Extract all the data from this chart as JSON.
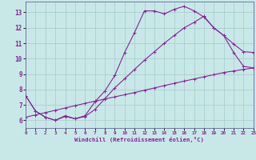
{
  "xlabel": "Windchill (Refroidissement éolien,°C)",
  "xlim": [
    0,
    23
  ],
  "ylim": [
    5.5,
    13.7
  ],
  "xticks": [
    0,
    1,
    2,
    3,
    4,
    5,
    6,
    7,
    8,
    9,
    10,
    11,
    12,
    13,
    14,
    15,
    16,
    17,
    18,
    19,
    20,
    21,
    22,
    23
  ],
  "yticks": [
    6,
    7,
    8,
    9,
    10,
    11,
    12,
    13
  ],
  "bg_color": "#c8e8e8",
  "grid_color": "#aacccc",
  "line_color": "#882299",
  "line1_x": [
    0,
    1,
    2,
    3,
    4,
    5,
    6,
    7,
    8,
    9,
    10,
    11,
    12,
    13,
    14,
    15,
    16,
    17,
    18,
    19,
    20,
    21,
    22,
    23
  ],
  "line1_y": [
    7.6,
    6.6,
    6.2,
    6.0,
    6.3,
    6.1,
    6.3,
    7.2,
    7.9,
    8.9,
    10.4,
    11.7,
    13.1,
    13.1,
    12.9,
    13.2,
    13.4,
    13.1,
    12.7,
    12.0,
    11.5,
    10.95,
    10.45,
    10.4
  ],
  "line2_x": [
    0,
    1,
    2,
    3,
    4,
    5,
    6,
    7,
    8,
    9,
    10,
    11,
    12,
    13,
    14,
    15,
    16,
    17,
    18,
    19,
    20,
    21,
    22,
    23
  ],
  "line2_y": [
    7.6,
    6.6,
    6.2,
    6.0,
    6.25,
    6.1,
    6.25,
    6.7,
    7.4,
    8.1,
    8.7,
    9.3,
    9.9,
    10.45,
    11.0,
    11.5,
    12.0,
    12.35,
    12.75,
    12.0,
    11.5,
    10.4,
    9.5,
    9.4
  ],
  "line3_x": [
    0,
    1,
    2,
    3,
    4,
    5,
    6,
    7,
    8,
    9,
    10,
    11,
    12,
    13,
    14,
    15,
    16,
    17,
    18,
    19,
    20,
    21,
    22,
    23
  ],
  "line3_y": [
    6.2,
    6.35,
    6.5,
    6.65,
    6.8,
    6.95,
    7.1,
    7.24,
    7.38,
    7.52,
    7.66,
    7.8,
    7.95,
    8.1,
    8.25,
    8.4,
    8.54,
    8.68,
    8.82,
    8.96,
    9.1,
    9.2,
    9.3,
    9.4
  ]
}
